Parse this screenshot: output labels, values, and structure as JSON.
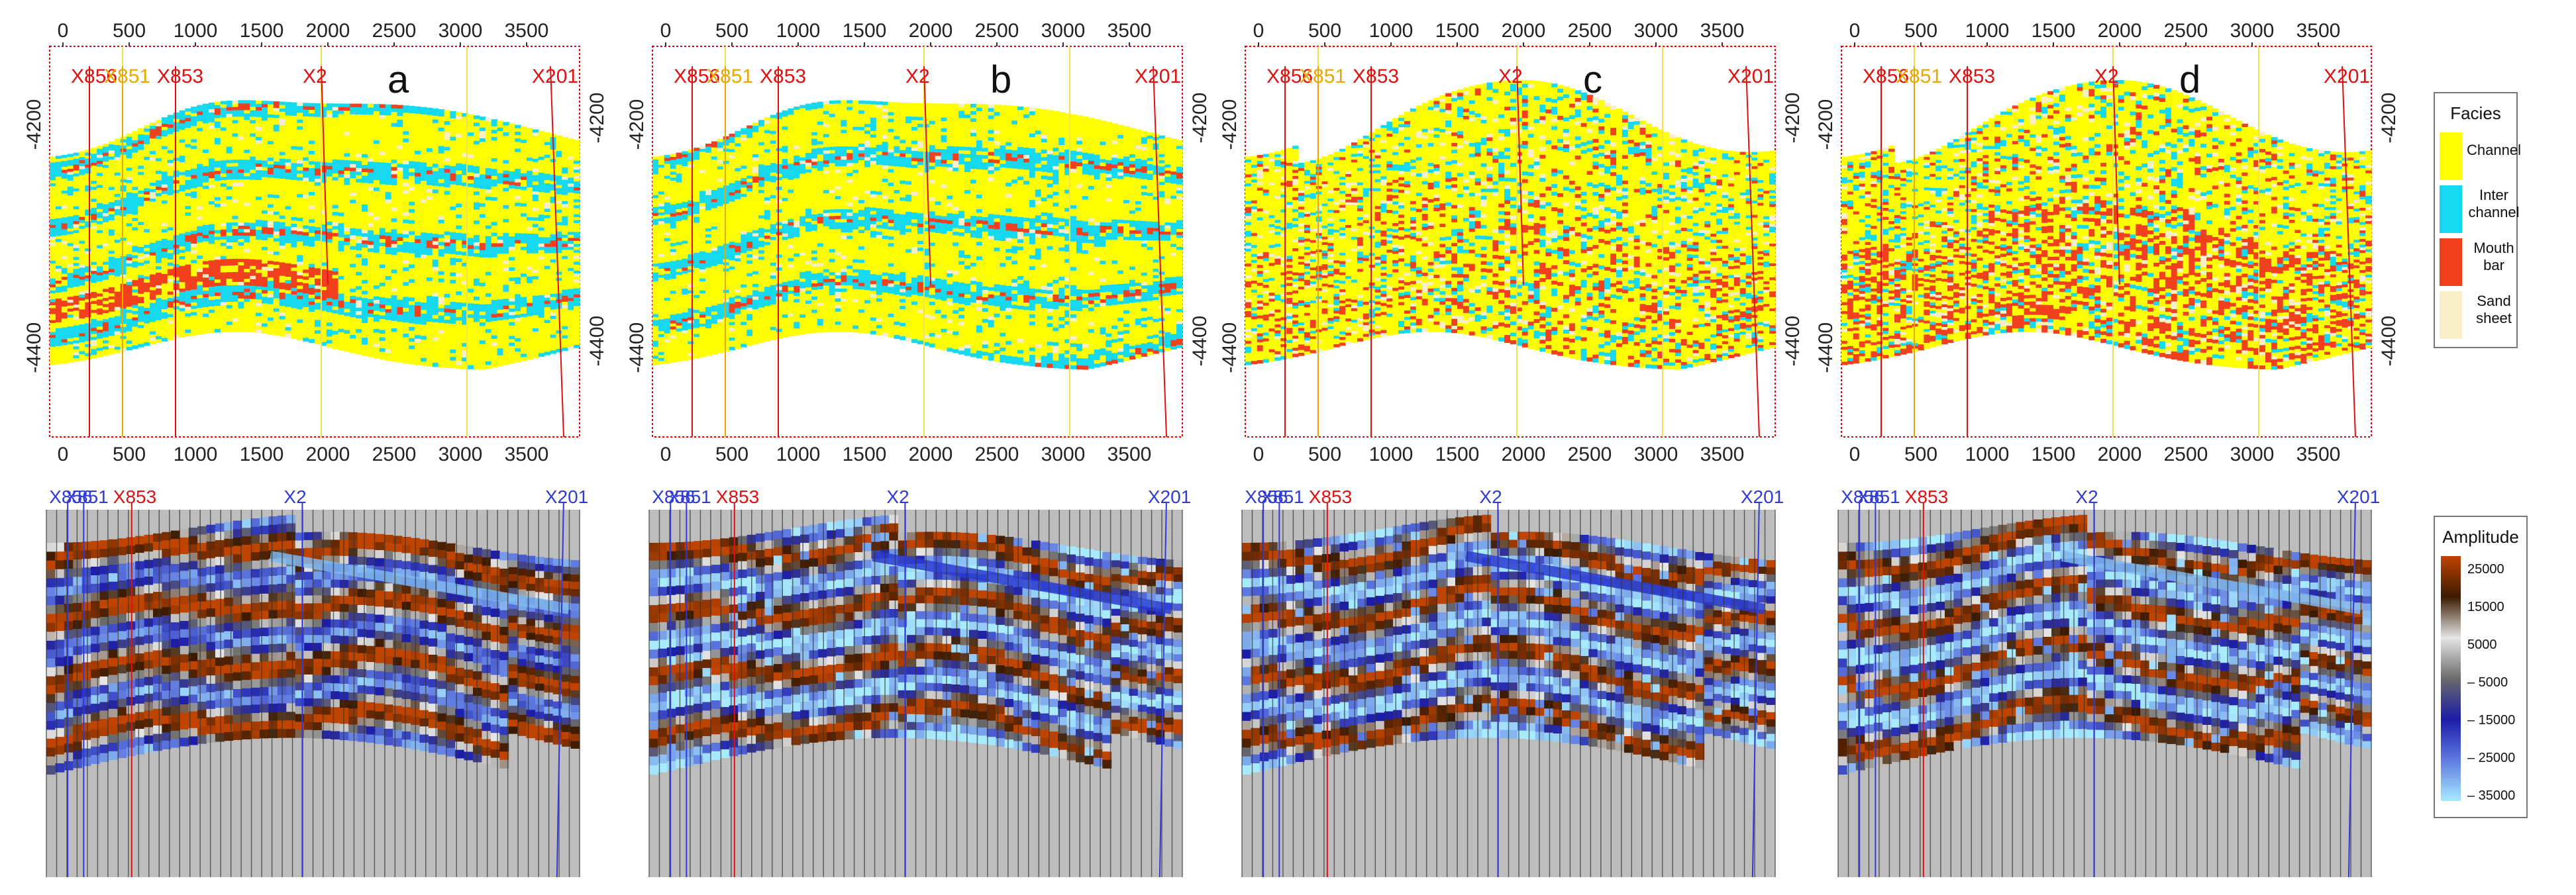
{
  "figure_title": "",
  "colors": {
    "channel": "#ffff00",
    "inter_channel": "#16d9ef",
    "mouth_bar": "#f0401e",
    "sand_sheet": "#f8efc8",
    "frame_red": "#e00000",
    "well_red": "#e01010",
    "well_blue": "#2f3bd8",
    "well_orange": "#e8a800",
    "seismic_bg": "#bdbdbd"
  },
  "chart_data": [
    {
      "type": "heatmap",
      "panel": "a",
      "panel_label": "a",
      "x_ticks": [
        "0",
        "500",
        "1000",
        "1500",
        "2000",
        "2500",
        "3000",
        "3500"
      ],
      "y_ticks": [
        "-4200",
        "-4400"
      ],
      "xlim": [
        -100,
        3900
      ],
      "ylim": [
        -4480,
        -4130
      ],
      "wells": [
        {
          "name": "X856",
          "x": 200
        },
        {
          "name": "X851",
          "x": 450
        },
        {
          "name": "X853",
          "x": 850
        },
        {
          "name": "X2",
          "x": 1950
        },
        {
          "name": "X201",
          "x": 3680
        }
      ],
      "mouth_bar_share": "low"
    },
    {
      "type": "heatmap",
      "panel": "b",
      "panel_label": "b",
      "x_ticks": [
        "0",
        "500",
        "1000",
        "1500",
        "2000",
        "2500",
        "3000",
        "3500"
      ],
      "y_ticks": [
        "-4200",
        "-4400"
      ],
      "xlim": [
        -100,
        3900
      ],
      "ylim": [
        -4480,
        -4130
      ],
      "wells": [
        {
          "name": "X856",
          "x": 200
        },
        {
          "name": "X851",
          "x": 450
        },
        {
          "name": "X853",
          "x": 850
        },
        {
          "name": "X2",
          "x": 1950
        },
        {
          "name": "X201",
          "x": 3680
        }
      ],
      "mouth_bar_share": "low"
    },
    {
      "type": "heatmap",
      "panel": "c",
      "panel_label": "c",
      "x_ticks": [
        "0",
        "500",
        "1000",
        "1500",
        "2000",
        "2500",
        "3000",
        "3500"
      ],
      "y_ticks": [
        "-4200",
        "-4400"
      ],
      "xlim": [
        -100,
        3900
      ],
      "ylim": [
        -4480,
        -4130
      ],
      "wells": [
        {
          "name": "X856",
          "x": 200
        },
        {
          "name": "X851",
          "x": 450
        },
        {
          "name": "X853",
          "x": 850
        },
        {
          "name": "X2",
          "x": 1950
        },
        {
          "name": "X201",
          "x": 3680
        }
      ],
      "mouth_bar_share": "medium"
    },
    {
      "type": "heatmap",
      "panel": "d",
      "panel_label": "d",
      "x_ticks": [
        "0",
        "500",
        "1000",
        "1500",
        "2000",
        "2500",
        "3000",
        "3500"
      ],
      "y_ticks": [
        "-4200",
        "-4400"
      ],
      "xlim": [
        -100,
        3900
      ],
      "ylim": [
        -4480,
        -4130
      ],
      "wells": [
        {
          "name": "X856",
          "x": 200
        },
        {
          "name": "X851",
          "x": 450
        },
        {
          "name": "X853",
          "x": 850
        },
        {
          "name": "X2",
          "x": 1950
        },
        {
          "name": "X201",
          "x": 3680
        }
      ],
      "mouth_bar_share": "high"
    }
  ],
  "facies_legend": {
    "title": "Facies",
    "items": [
      {
        "label_lines": [
          "Channel"
        ],
        "color": "#ffff00"
      },
      {
        "label_lines": [
          "Inter",
          "channel"
        ],
        "color": "#16d9ef"
      },
      {
        "label_lines": [
          "Mouth",
          "bar"
        ],
        "color": "#f0401e"
      },
      {
        "label_lines": [
          "Sand",
          "sheet"
        ],
        "color": "#f8efc8"
      }
    ]
  },
  "amplitude_legend": {
    "title": "Amplitude",
    "values": [
      "25000",
      "15000",
      "5000",
      "– 5000",
      "– 15000",
      "– 25000",
      "– 35000"
    ],
    "stops": [
      "#bf4400",
      "#3b1a00",
      "#e6e6e6",
      "#6a6a6a",
      "#1c1ca8",
      "#5f7ae0",
      "#a8ebff"
    ]
  },
  "seismic_panels": [
    {
      "wells": [
        "X856",
        "X851",
        "X853",
        "X2",
        "X201"
      ]
    },
    {
      "wells": [
        "X856",
        "X851",
        "X853",
        "X2",
        "X201"
      ]
    },
    {
      "wells": [
        "X856",
        "X851",
        "X853",
        "X2",
        "X201"
      ]
    },
    {
      "wells": [
        "X856",
        "X851",
        "X853",
        "X2",
        "X201"
      ]
    }
  ]
}
